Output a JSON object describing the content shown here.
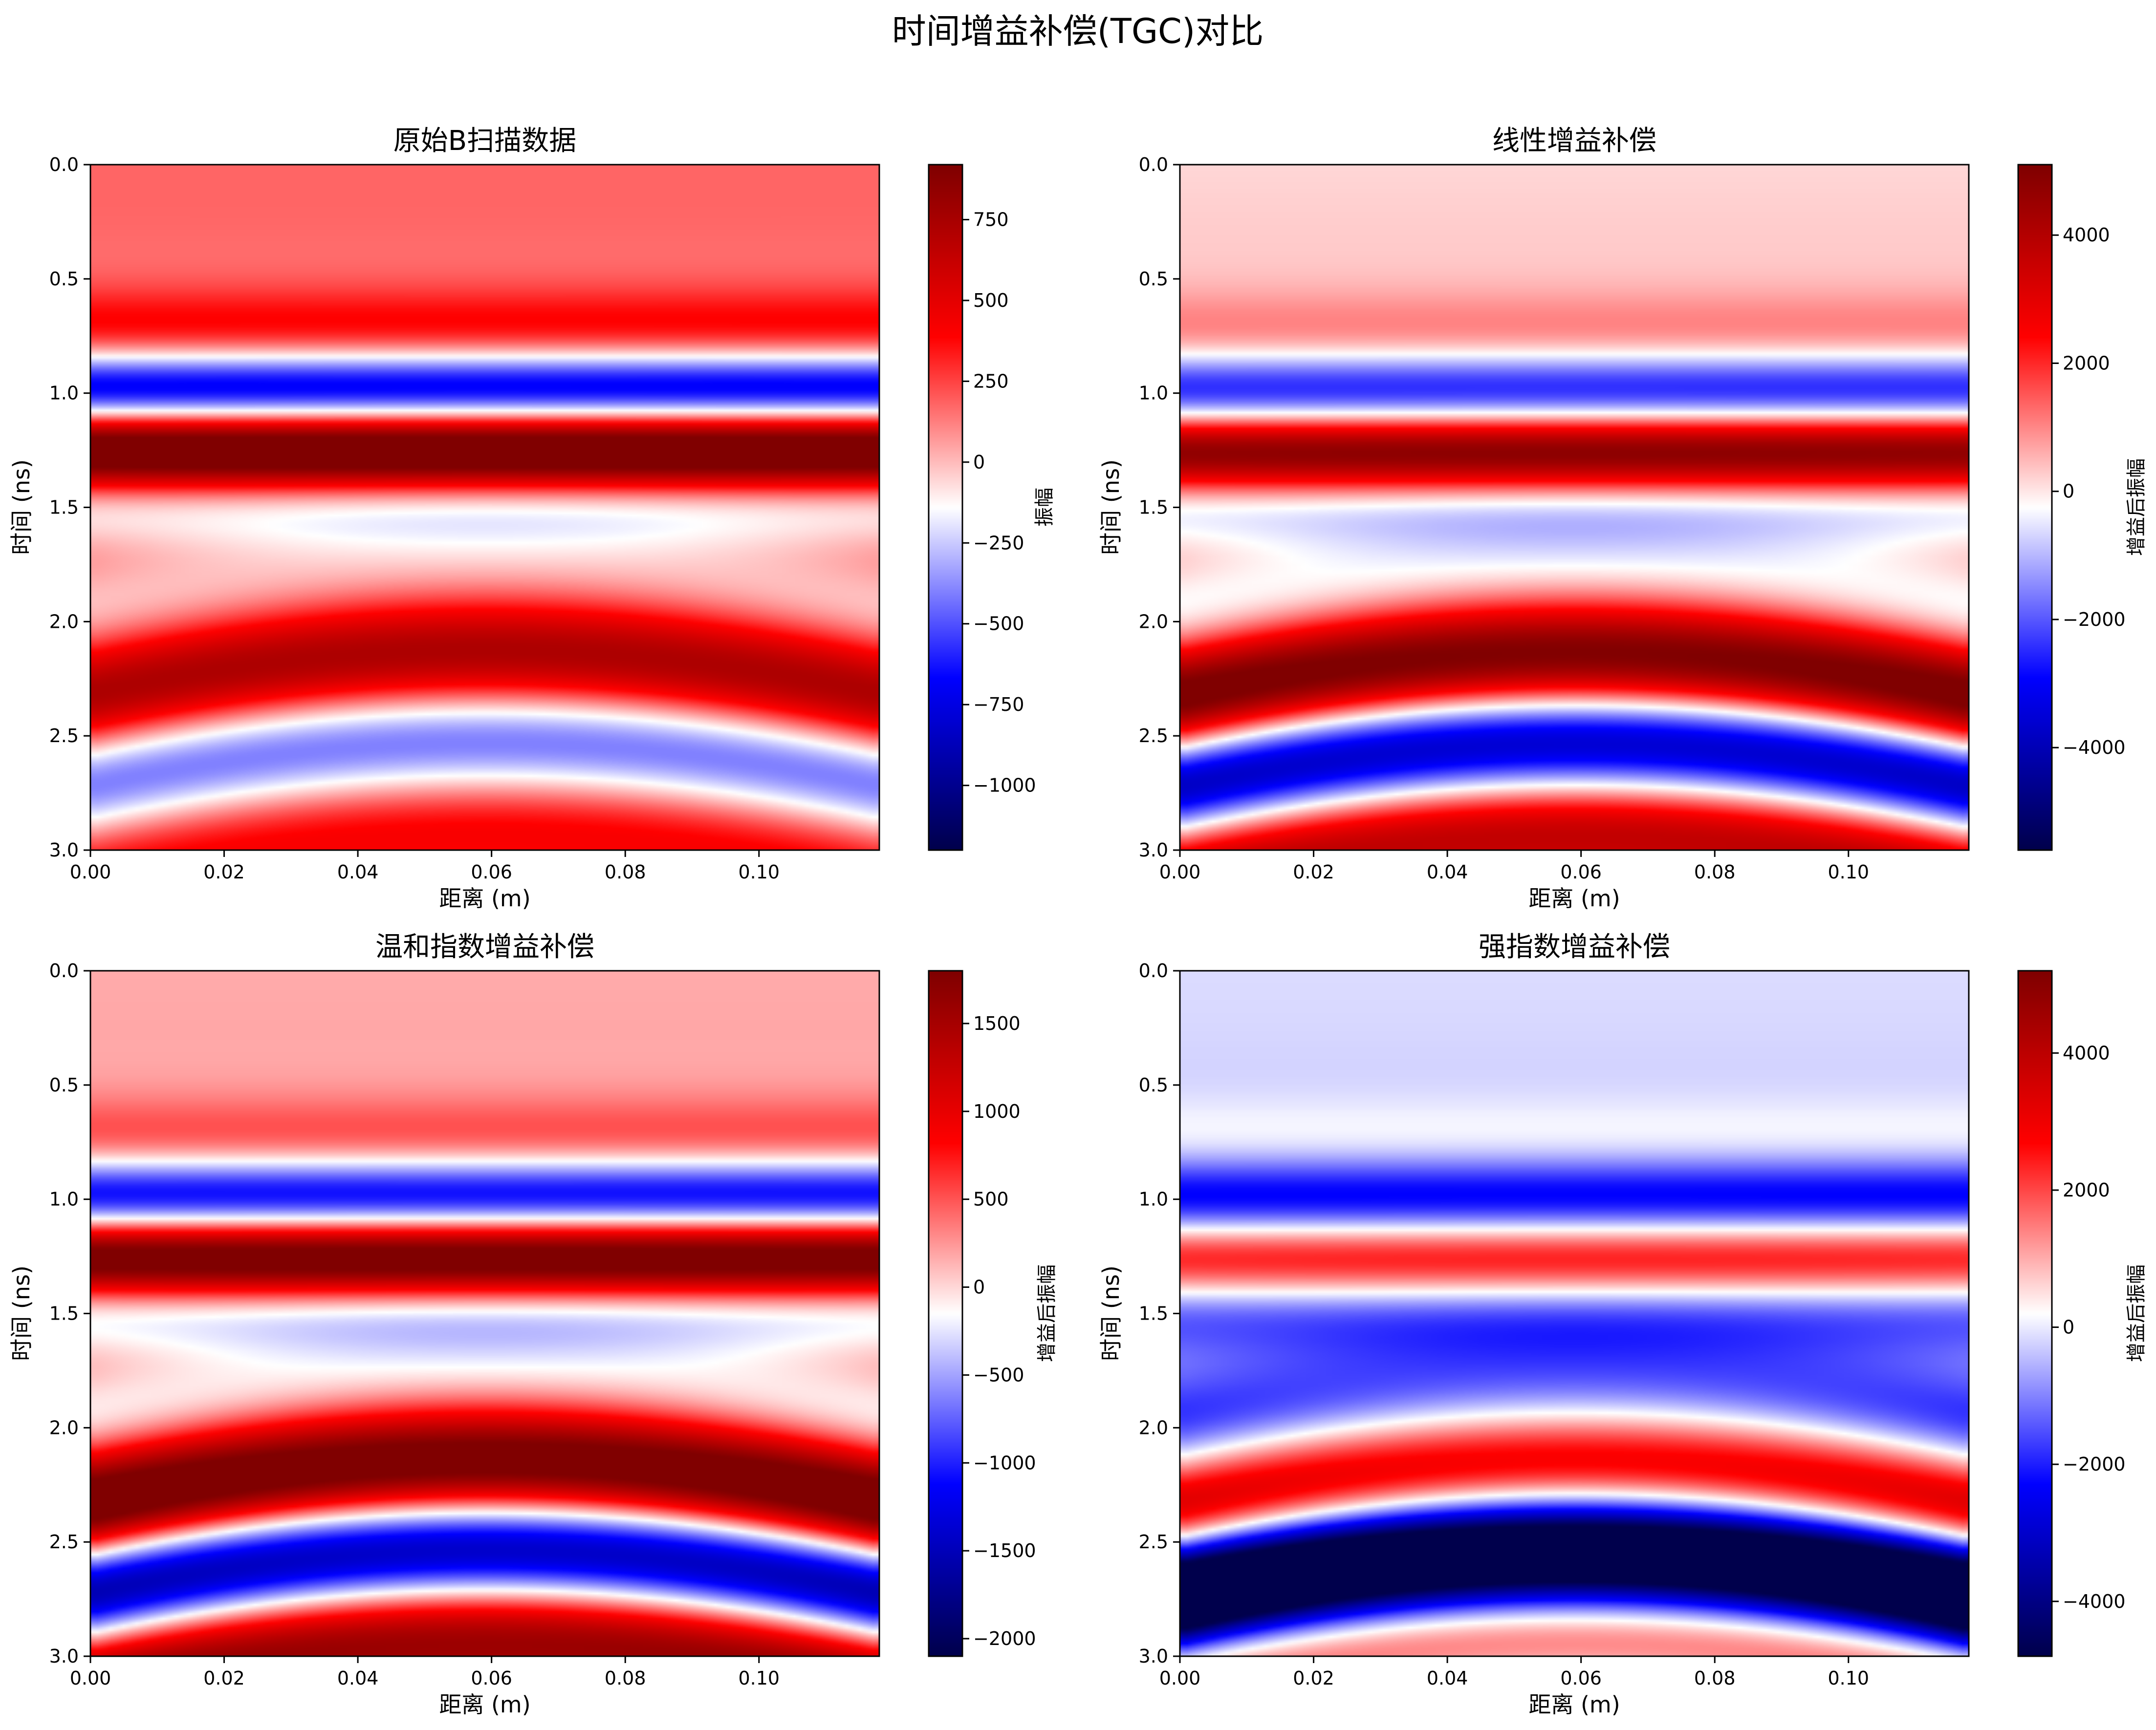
{
  "figure": {
    "suptitle": "时间增益补偿(TGC)对比"
  },
  "colors": {
    "colormap": "seismic",
    "cmap_stops": [
      "#00004c",
      "#0000ff",
      "#ffffff",
      "#ff0000",
      "#800000"
    ],
    "axis": "#000000",
    "background": "#ffffff"
  },
  "chart_data": [
    {
      "type": "heatmap",
      "title": "原始B扫描数据",
      "xlabel": "距离 (m)",
      "ylabel": "时间 (ns)",
      "xlim": [
        0,
        0.118
      ],
      "ylim": [
        3.0,
        0.0
      ],
      "y_inverted": true,
      "xticks": [
        "0.00",
        "0.02",
        "0.04",
        "0.06",
        "0.08",
        "0.10"
      ],
      "xtick_values": [
        0,
        0.02,
        0.04,
        0.06,
        0.08,
        0.1
      ],
      "yticks": [
        "0.0",
        "0.5",
        "1.0",
        "1.5",
        "2.0",
        "2.5",
        "3.0"
      ],
      "ytick_values": [
        0,
        0.5,
        1.0,
        1.5,
        2.0,
        2.5,
        3.0
      ],
      "colorbar": {
        "label": "振幅",
        "vmin": -1200,
        "vmax": 920,
        "ticks": [
          750,
          500,
          250,
          0,
          -250,
          -500,
          -750,
          -1000
        ],
        "tick_labels": [
          "750",
          "500",
          "250",
          "0",
          "−250",
          "−500",
          "−750",
          "−1000"
        ]
      },
      "model": {
        "base": 180,
        "direct_wave": {
          "center_ns": 1.13,
          "period_ns": 0.66,
          "amplitude": 1050,
          "envelope_ns": 0.38
        },
        "hyperbola": {
          "apex_x_m": 0.059,
          "apex_t_ns": 2.1,
          "velocity": 0.13,
          "period_ns": 0.9,
          "amplitude": 640,
          "offset_ns": 0.25,
          "envelope_ns": 0.62
        },
        "gain": "none"
      }
    },
    {
      "type": "heatmap",
      "title": "线性增益补偿",
      "xlabel": "距离 (m)",
      "ylabel": "时间 (ns)",
      "xlim": [
        0,
        0.118
      ],
      "ylim": [
        3.0,
        0.0
      ],
      "y_inverted": true,
      "xticks": [
        "0.00",
        "0.02",
        "0.04",
        "0.06",
        "0.08",
        "0.10"
      ],
      "xtick_values": [
        0,
        0.02,
        0.04,
        0.06,
        0.08,
        0.1
      ],
      "yticks": [
        "0.0",
        "0.5",
        "1.0",
        "1.5",
        "2.0",
        "2.5",
        "3.0"
      ],
      "ytick_values": [
        0,
        0.5,
        1.0,
        1.5,
        2.0,
        2.5,
        3.0
      ],
      "colorbar": {
        "label": "增益后振幅",
        "vmin": -5600,
        "vmax": 5100,
        "ticks": [
          4000,
          2000,
          0,
          -2000,
          -4000
        ],
        "tick_labels": [
          "4000",
          "2000",
          "0",
          "−2000",
          "−4000"
        ]
      },
      "model": {
        "base": 170,
        "direct_wave": {
          "center_ns": 1.13,
          "period_ns": 0.66,
          "amplitude": 1050,
          "envelope_ns": 0.38
        },
        "hyperbola": {
          "apex_x_m": 0.059,
          "apex_t_ns": 2.1,
          "velocity": 0.13,
          "period_ns": 0.9,
          "amplitude": 700,
          "offset_ns": 0.25,
          "envelope_ns": 0.62
        },
        "gain": "linear"
      }
    },
    {
      "type": "heatmap",
      "title": "温和指数增益补偿",
      "xlabel": "距离 (m)",
      "ylabel": "时间 (ns)",
      "xlim": [
        0,
        0.118
      ],
      "ylim": [
        3.0,
        0.0
      ],
      "y_inverted": true,
      "xticks": [
        "0.00",
        "0.02",
        "0.04",
        "0.06",
        "0.08",
        "0.10"
      ],
      "xtick_values": [
        0,
        0.02,
        0.04,
        0.06,
        0.08,
        0.1
      ],
      "yticks": [
        "0.0",
        "0.5",
        "1.0",
        "1.5",
        "2.0",
        "2.5",
        "3.0"
      ],
      "ytick_values": [
        0,
        0.5,
        1.0,
        1.5,
        2.0,
        2.5,
        3.0
      ],
      "colorbar": {
        "label": "增益后振幅",
        "vmin": -2100,
        "vmax": 1800,
        "ticks": [
          1500,
          1000,
          500,
          0,
          -500,
          -1000,
          -1500,
          -2000
        ],
        "tick_labels": [
          "1500",
          "1000",
          "500",
          "0",
          "−500",
          "−1000",
          "−1500",
          "−2000"
        ]
      },
      "model": {
        "base": 170,
        "direct_wave": {
          "center_ns": 1.13,
          "period_ns": 0.66,
          "amplitude": 1050,
          "envelope_ns": 0.38
        },
        "hyperbola": {
          "apex_x_m": 0.059,
          "apex_t_ns": 2.1,
          "velocity": 0.13,
          "period_ns": 0.9,
          "amplitude": 680,
          "offset_ns": 0.25,
          "envelope_ns": 0.62
        },
        "gain": "exp_mild"
      }
    },
    {
      "type": "heatmap",
      "title": "强指数增益补偿",
      "xlabel": "距离 (m)",
      "ylabel": "时间 (ns)",
      "xlim": [
        0,
        0.118
      ],
      "ylim": [
        3.0,
        0.0
      ],
      "y_inverted": true,
      "xticks": [
        "0.00",
        "0.02",
        "0.04",
        "0.06",
        "0.08",
        "0.10"
      ],
      "xtick_values": [
        0,
        0.02,
        0.04,
        0.06,
        0.08,
        0.1
      ],
      "yticks": [
        "0.0",
        "0.5",
        "1.0",
        "1.5",
        "2.0",
        "2.5",
        "3.0"
      ],
      "ytick_values": [
        0,
        0.5,
        1.0,
        1.5,
        2.0,
        2.5,
        3.0
      ],
      "colorbar": {
        "label": "增益后振幅",
        "vmin": -4800,
        "vmax": 5200,
        "ticks": [
          4000,
          2000,
          0,
          -2000,
          -4000
        ],
        "tick_labels": [
          "4000",
          "2000",
          "0",
          "−2000",
          "−4000"
        ]
      },
      "model": {
        "base": -150,
        "direct_wave": {
          "center_ns": 1.13,
          "period_ns": 0.66,
          "amplitude": 1050,
          "envelope_ns": 0.38
        },
        "hyperbola": {
          "apex_x_m": 0.059,
          "apex_t_ns": 2.1,
          "velocity": 0.13,
          "period_ns": 0.9,
          "amplitude": 700,
          "offset_ns": 0.25,
          "envelope_ns": 0.62
        },
        "gain": "exp_strong"
      }
    }
  ]
}
